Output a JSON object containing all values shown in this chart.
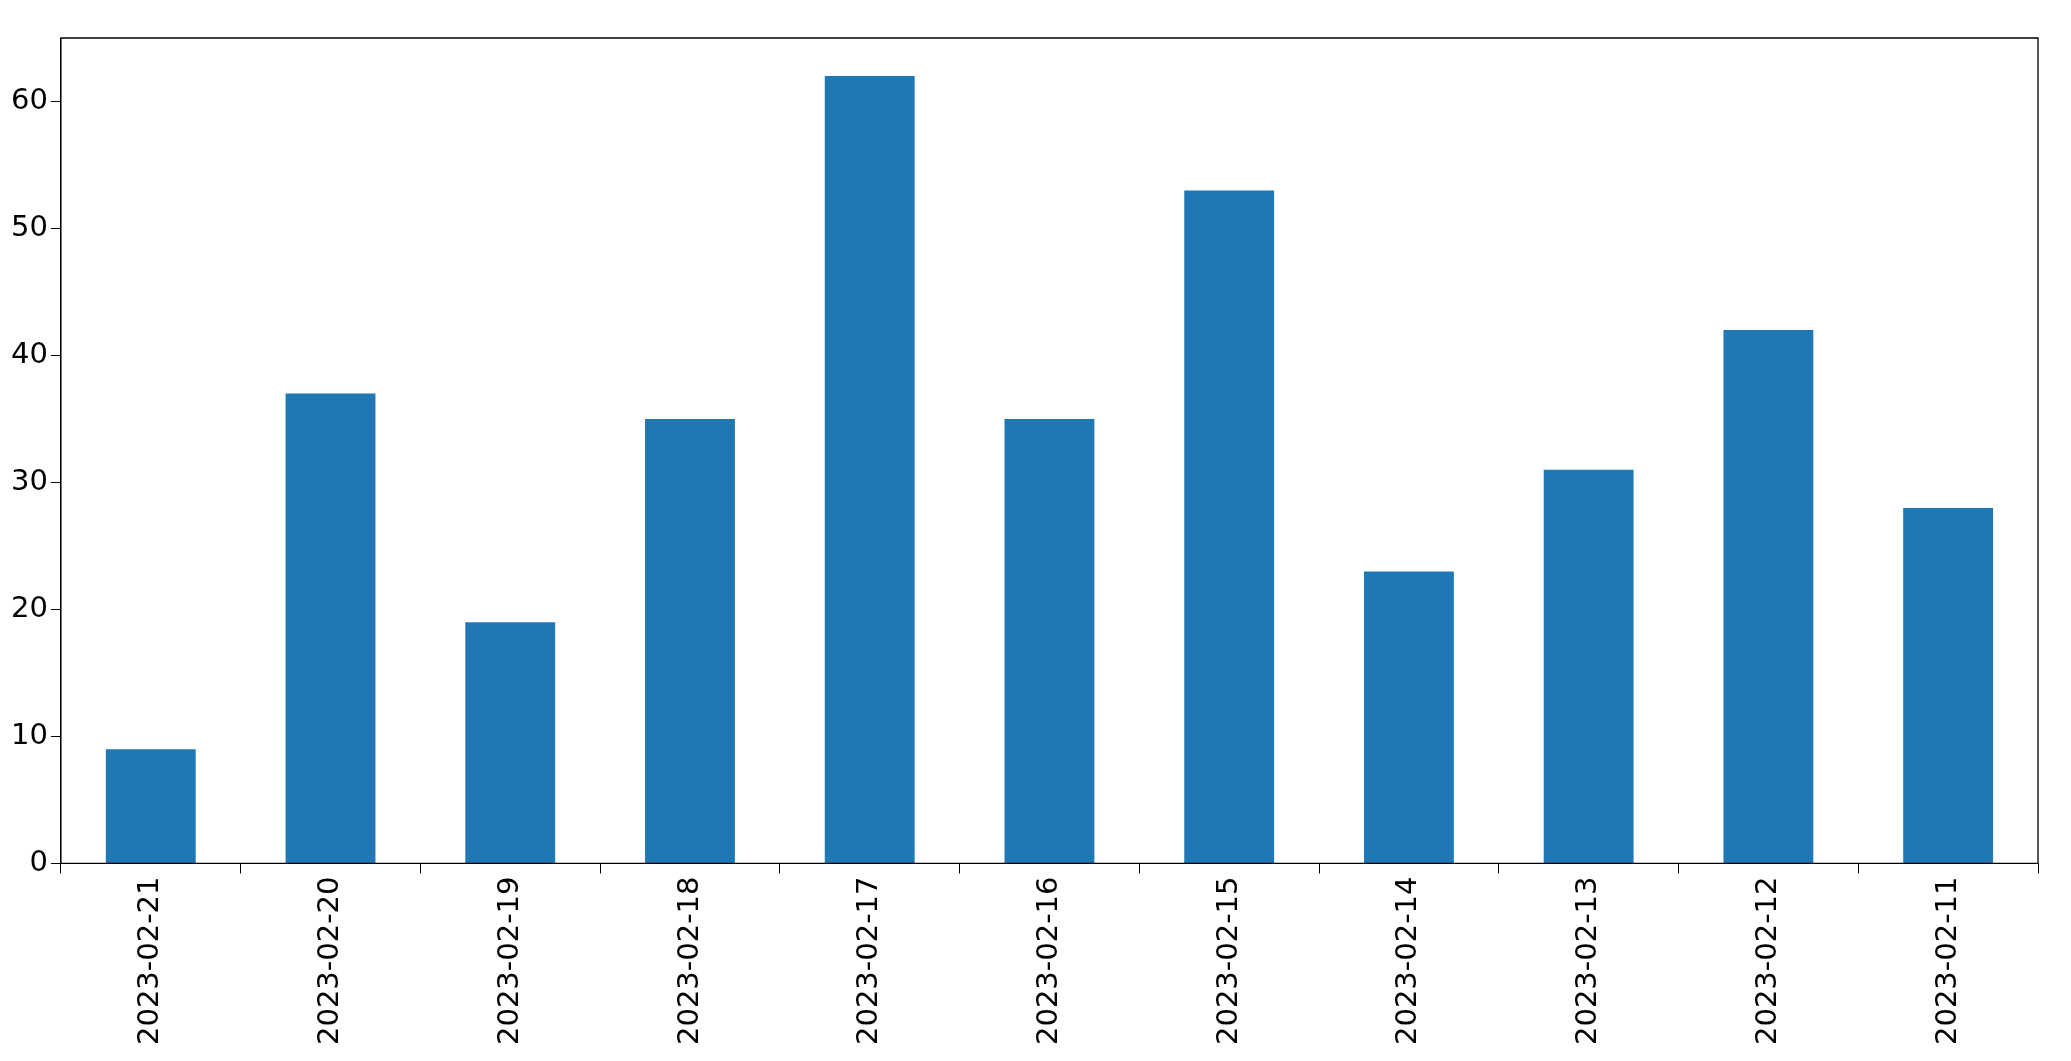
{
  "chart_data": {
    "type": "bar",
    "categories": [
      "2023-02-21",
      "2023-02-20",
      "2023-02-19",
      "2023-02-18",
      "2023-02-17",
      "2023-02-16",
      "2023-02-15",
      "2023-02-14",
      "2023-02-13",
      "2023-02-12",
      "2023-02-11"
    ],
    "values": [
      9,
      37,
      19,
      35,
      62,
      35,
      53,
      23,
      31,
      42,
      28
    ],
    "color": "#1f77b4",
    "ylim": [
      0,
      65
    ],
    "yticks": [
      0,
      10,
      20,
      30,
      40,
      50,
      60
    ],
    "grid": false,
    "legend": false
  }
}
